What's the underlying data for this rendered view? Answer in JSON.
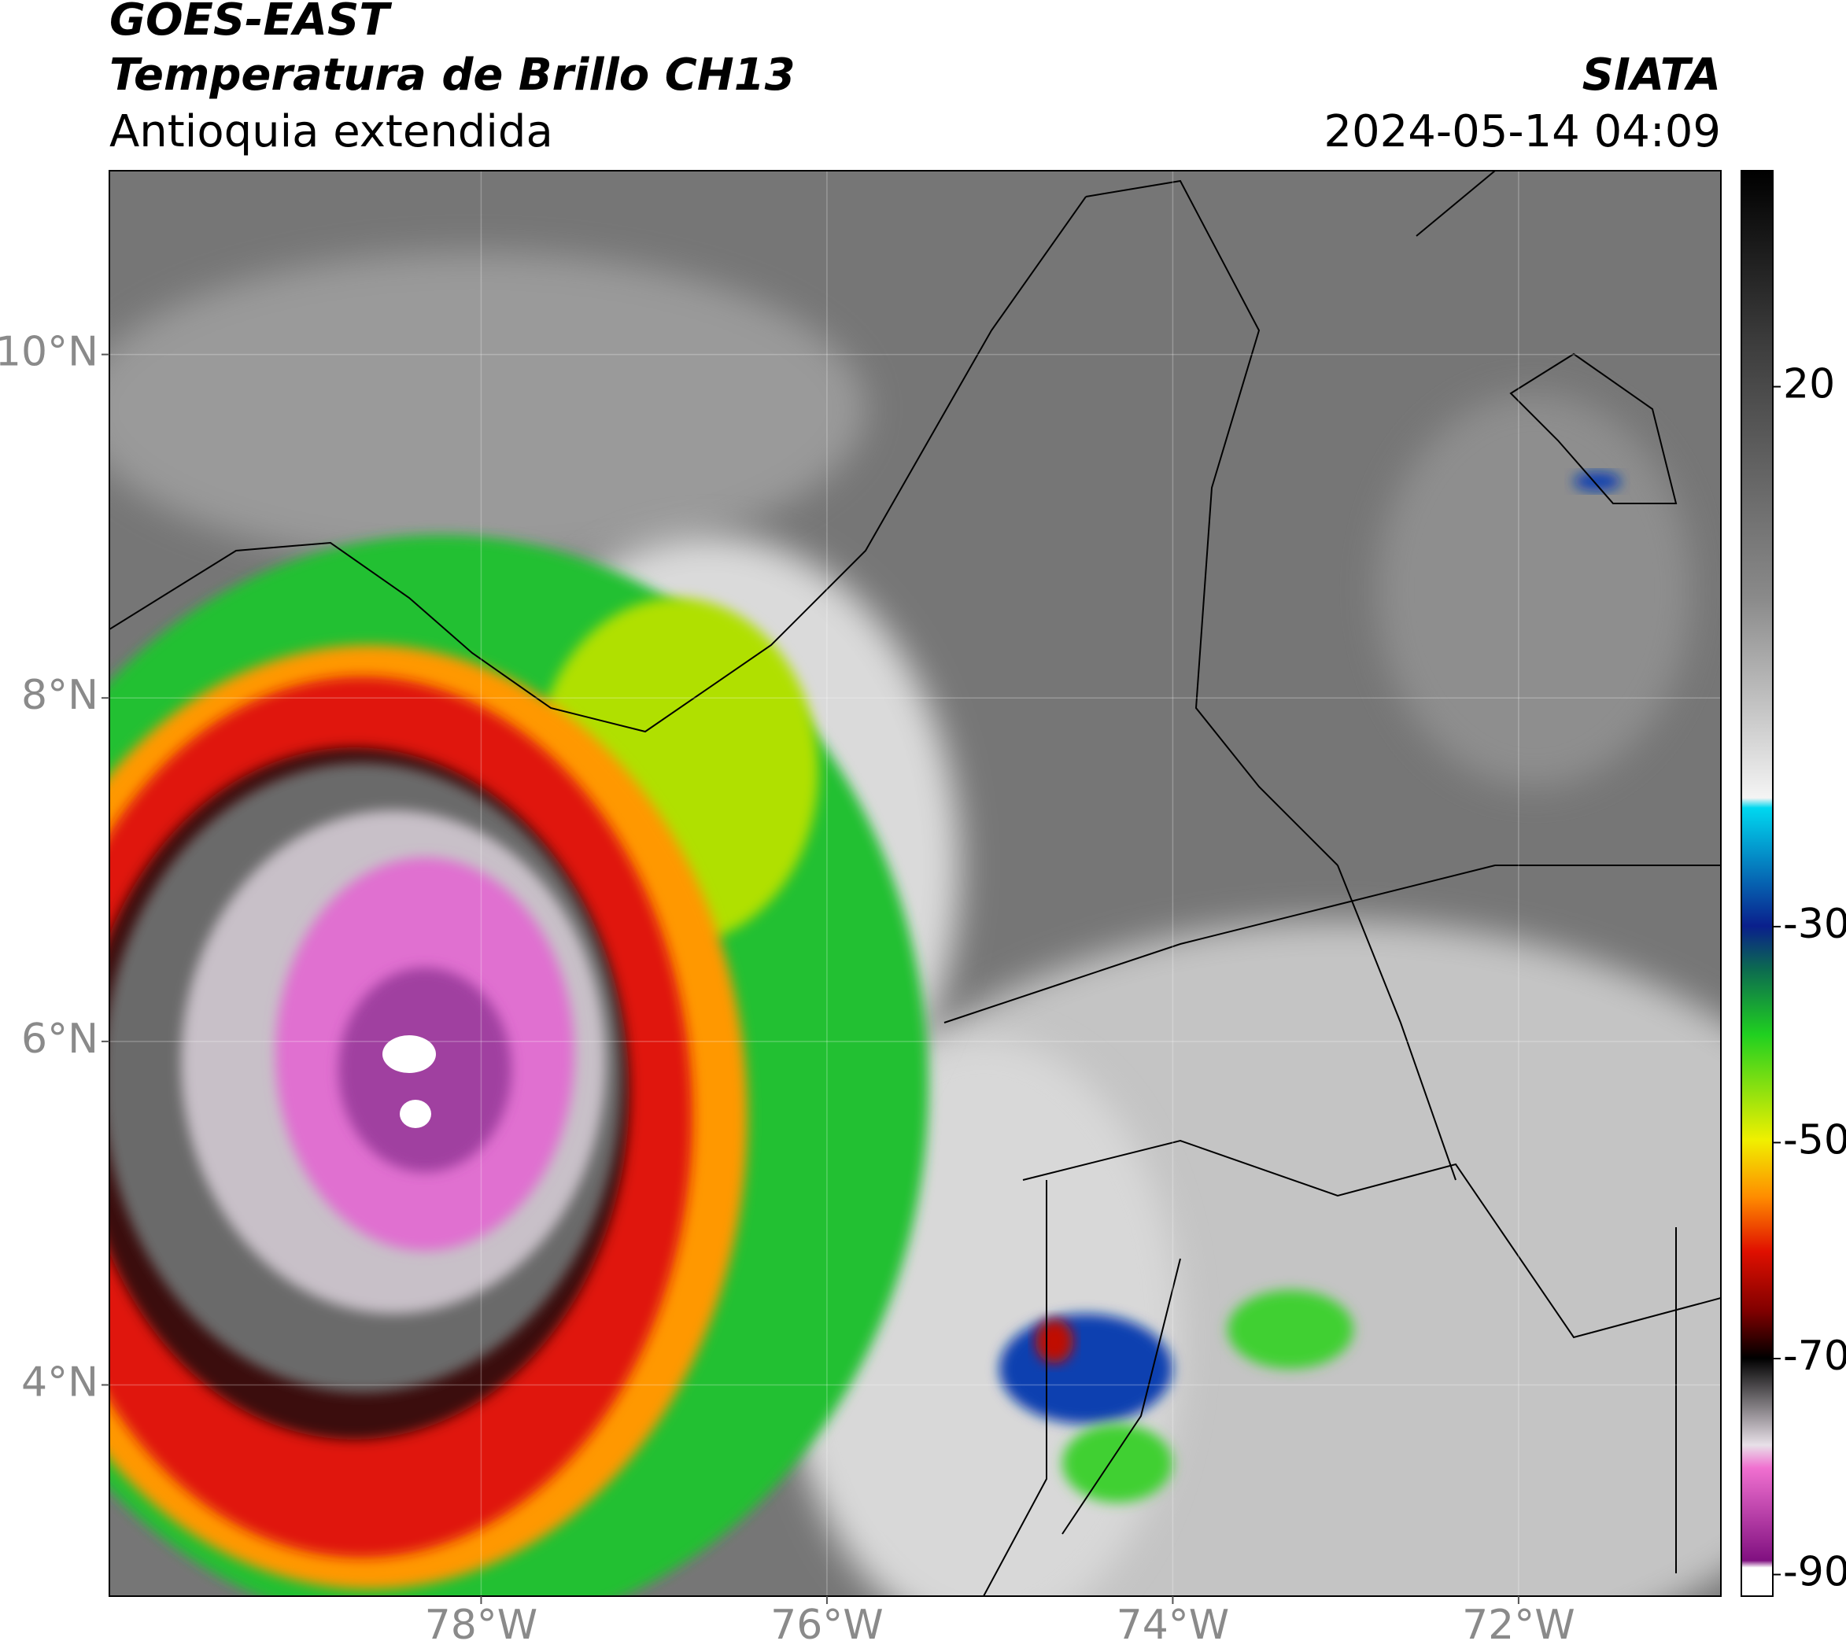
{
  "header": {
    "title": "GOES-EAST",
    "subtitle": "Temperatura de Brillo CH13",
    "region": "Antioquia extendida",
    "source": "SIATA",
    "timestamp": "2024-05-14 04:09"
  },
  "map": {
    "lonlim": [
      -80.15,
      -70.83
    ],
    "latlim": [
      2.77,
      11.07
    ],
    "lonticks": [
      {
        "value": -78,
        "label": "78°W"
      },
      {
        "value": -76,
        "label": "76°W"
      },
      {
        "value": -74,
        "label": "74°W"
      },
      {
        "value": -72,
        "label": "72°W"
      }
    ],
    "latticks": [
      {
        "value": 4,
        "label": "4°N"
      },
      {
        "value": 6,
        "label": "6°N"
      },
      {
        "value": 8,
        "label": "8°N"
      },
      {
        "value": 10,
        "label": "10°N"
      }
    ]
  },
  "colorbar": {
    "lim": [
      -92,
      40
    ],
    "ticks": [
      20,
      -30,
      -50,
      -70,
      -90
    ]
  }
}
